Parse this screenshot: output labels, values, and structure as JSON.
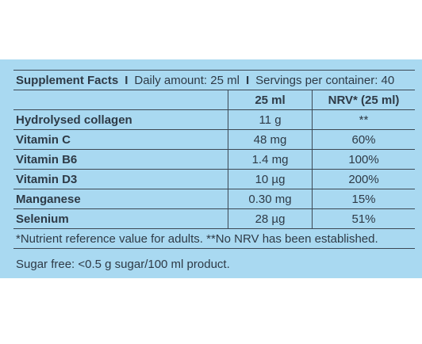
{
  "header": {
    "title": "Supplement Facts",
    "separator": "I",
    "daily_amount": "Daily amount: 25 ml",
    "servings": "Servings per container: 40"
  },
  "table": {
    "columns": [
      "25 ml",
      "NRV* (25 ml)"
    ],
    "rows": [
      [
        "Hydrolysed collagen",
        "11 g",
        "**"
      ],
      [
        "Vitamin C",
        "48 mg",
        "60%"
      ],
      [
        "Vitamin B6",
        "1.4 mg",
        "100%"
      ],
      [
        "Vitamin D3",
        "10 µg",
        "200%"
      ],
      [
        "Manganese",
        "0.30 mg",
        "15%"
      ],
      [
        "Selenium",
        "28 µg",
        "51%"
      ]
    ]
  },
  "footnote": "*Nutrient reference value for adults. **No NRV has been established.",
  "sugar_note": "Sugar free: <0.5 g sugar/100 ml product."
}
